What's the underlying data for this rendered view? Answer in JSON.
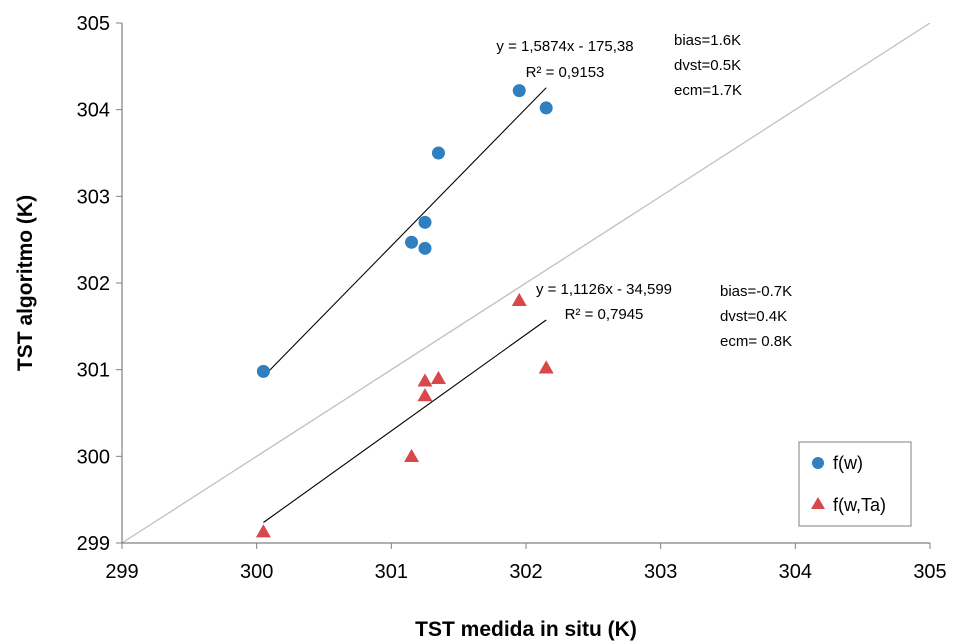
{
  "chart_data": {
    "type": "scatter",
    "xlabel": "TST medida in situ (K)",
    "ylabel": "TST algoritmo (K)",
    "xlim": [
      299,
      305
    ],
    "ylim": [
      299,
      305
    ],
    "xticks": [
      299,
      300,
      301,
      302,
      303,
      304,
      305
    ],
    "yticks": [
      299,
      300,
      301,
      302,
      303,
      304,
      305
    ],
    "x_tick_labels": [
      "299",
      "300",
      "301",
      "302",
      "303",
      "304",
      "305"
    ],
    "y_tick_labels": [
      "299",
      "300",
      "301",
      "302",
      "303",
      "304",
      "305"
    ],
    "grid": false,
    "legend_position": "bottom-right",
    "reference_line": {
      "slope": 1,
      "intercept": 0,
      "color": "#c0c0c0"
    },
    "series": [
      {
        "name": "f(w)",
        "marker": "circle",
        "color": "#2f7fc1",
        "points": [
          {
            "x": 300.05,
            "y": 300.98
          },
          {
            "x": 301.15,
            "y": 302.47
          },
          {
            "x": 301.25,
            "y": 302.7
          },
          {
            "x": 301.25,
            "y": 302.4
          },
          {
            "x": 301.35,
            "y": 303.5
          },
          {
            "x": 301.95,
            "y": 304.22
          },
          {
            "x": 302.15,
            "y": 304.02
          }
        ],
        "trendline": {
          "slope": 1.5874,
          "intercept": -175.38,
          "x_range": [
            300.05,
            302.15
          ]
        },
        "equation_label": "y = 1,5874x - 175,38",
        "r2_label": "R² = 0,9153",
        "stats": [
          "bias=1.6K",
          "dvst=0.5K",
          "ecm=1.7K"
        ]
      },
      {
        "name": "f(w,Ta)",
        "marker": "triangle",
        "color": "#d9474a",
        "points": [
          {
            "x": 300.05,
            "y": 299.13
          },
          {
            "x": 301.15,
            "y": 300.0
          },
          {
            "x": 301.25,
            "y": 300.7
          },
          {
            "x": 301.25,
            "y": 300.87
          },
          {
            "x": 301.35,
            "y": 300.9
          },
          {
            "x": 301.95,
            "y": 301.8
          },
          {
            "x": 302.15,
            "y": 301.02
          }
        ],
        "trendline": {
          "slope": 1.1126,
          "intercept": -34.599,
          "x_range": [
            300.05,
            302.15
          ]
        },
        "equation_label": "y = 1,1126x - 34,599",
        "r2_label": "R² = 0,7945",
        "stats": [
          "bias=-0.7K",
          "dvst=0.4K",
          "ecm= 0.8K"
        ]
      }
    ]
  }
}
